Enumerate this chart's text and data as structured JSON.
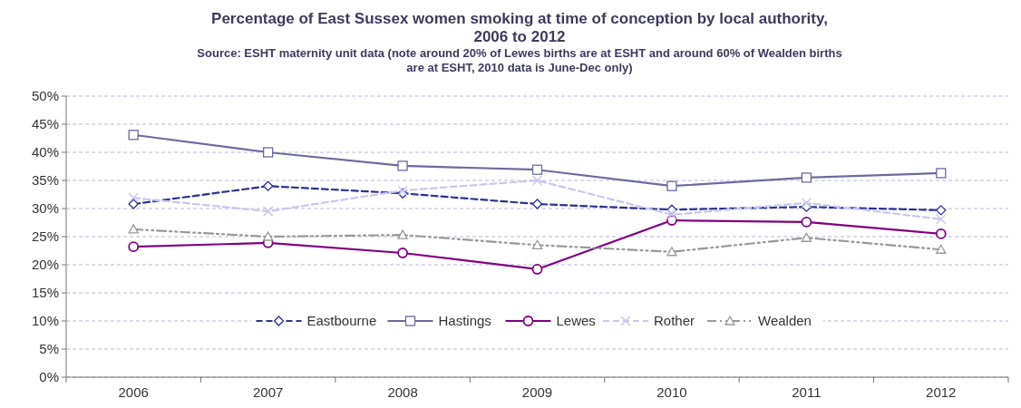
{
  "chart_data": {
    "type": "line",
    "title": "Percentage of East Sussex women smoking at time of conception by local authority, 2006 to 2012",
    "subtitle": "Source: ESHT maternity unit data (note around 20% of Lewes births are at ESHT and around 60% of Wealden births are at ESHT, 2010 data is June-Dec only)",
    "categories": [
      "2006",
      "2007",
      "2008",
      "2009",
      "2010",
      "2011",
      "2012"
    ],
    "series": [
      {
        "name": "Eastbourne",
        "color": "#2e3192",
        "marker": "diamond",
        "line_style": "dashed",
        "values": [
          30.8,
          34.0,
          32.7,
          30.8,
          29.8,
          30.3,
          29.7
        ]
      },
      {
        "name": "Hastings",
        "color": "#6b6b9e",
        "marker": "square",
        "line_style": "solid",
        "values": [
          43.1,
          40.0,
          37.6,
          36.9,
          34.0,
          35.5,
          36.3
        ]
      },
      {
        "name": "Lewes",
        "color": "#800080",
        "marker": "circle",
        "line_style": "solid",
        "values": [
          23.2,
          23.9,
          22.1,
          19.2,
          27.9,
          27.6,
          25.5
        ]
      },
      {
        "name": "Rother",
        "color": "#c8c8f0",
        "marker": "cross",
        "line_style": "dashed",
        "values": [
          31.9,
          29.5,
          33.2,
          35.0,
          28.9,
          31.0,
          28.1
        ]
      },
      {
        "name": "Wealden",
        "color": "#999999",
        "marker": "triangle",
        "line_style": "dotted",
        "values": [
          26.3,
          25.0,
          25.3,
          23.5,
          22.3,
          24.8,
          22.7
        ]
      }
    ],
    "ylim": [
      0,
      50
    ],
    "yticks": [
      {
        "value": 0,
        "label": "0%"
      },
      {
        "value": 5,
        "label": "5%"
      },
      {
        "value": 10,
        "label": "10%"
      },
      {
        "value": 15,
        "label": "15%"
      },
      {
        "value": 20,
        "label": "20%"
      },
      {
        "value": 25,
        "label": "25%"
      },
      {
        "value": 30,
        "label": "30%"
      },
      {
        "value": 35,
        "label": "35%"
      },
      {
        "value": 40,
        "label": "40%"
      },
      {
        "value": 45,
        "label": "45%"
      },
      {
        "value": 50,
        "label": "50%"
      }
    ],
    "grid": "y",
    "legend": "bottom"
  }
}
